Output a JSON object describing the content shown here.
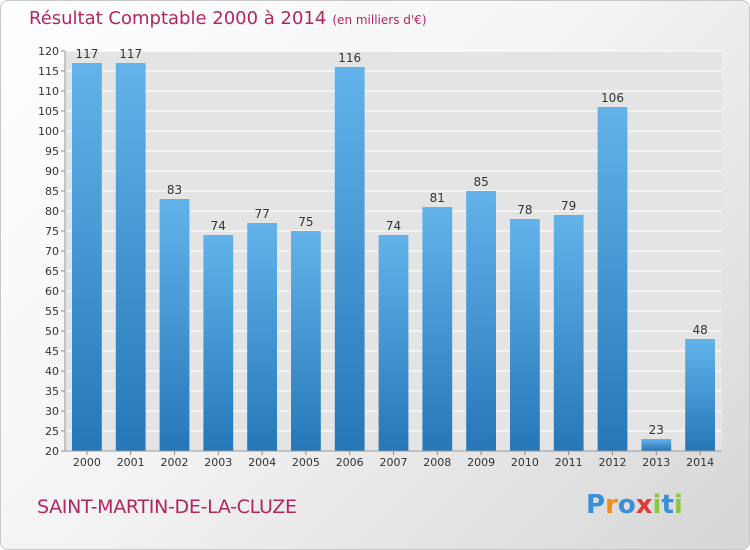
{
  "title": "Résultat Comptable 2000 à 2014",
  "subtitle": "(en milliers d'€)",
  "footer": {
    "city": "SAINT-MARTIN-DE-LA-CLUZE",
    "logo": "Proxiti"
  },
  "colors": {
    "title": "#b22660",
    "bar_light": "#63b3ea",
    "bar_dark": "#2577b8",
    "grid": "#ffffff",
    "plot_bg": "#e4e4e4",
    "logo_letters": [
      "#3b8fd6",
      "#f28c1e",
      "#3b8fd6",
      "#e23a3a",
      "#8cc63f",
      "#3b8fd6",
      "#8cc63f"
    ]
  },
  "chart_data": {
    "type": "bar",
    "categories": [
      "2000",
      "2001",
      "2002",
      "2003",
      "2004",
      "2005",
      "2006",
      "2007",
      "2008",
      "2009",
      "2010",
      "2011",
      "2012",
      "2013",
      "2014"
    ],
    "values": [
      117,
      117,
      83,
      74,
      77,
      75,
      116,
      74,
      81,
      85,
      78,
      79,
      106,
      23,
      48
    ],
    "ylim": [
      20,
      120
    ],
    "yticks": [
      20,
      25,
      30,
      35,
      40,
      45,
      50,
      55,
      60,
      65,
      70,
      75,
      80,
      85,
      90,
      95,
      100,
      105,
      110,
      115,
      120
    ],
    "grid": true,
    "data_labels": true
  }
}
